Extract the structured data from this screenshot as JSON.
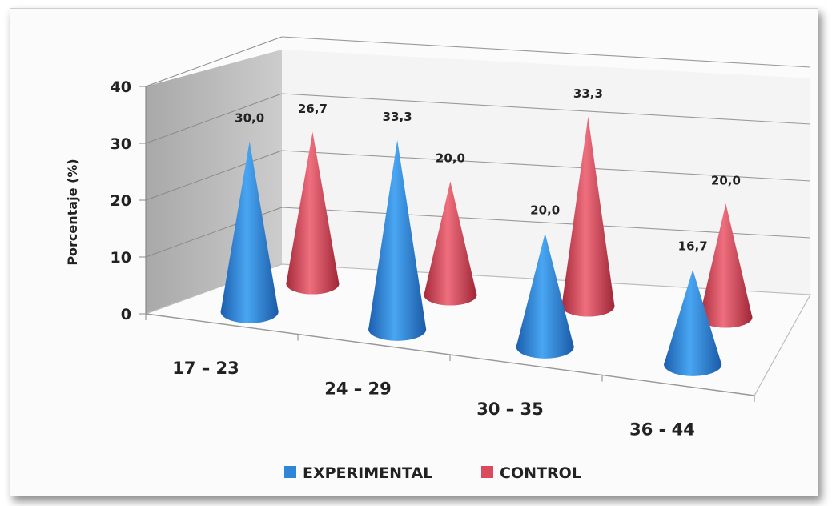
{
  "chart_data": {
    "type": "bar",
    "subtype": "3d-cone",
    "categories": [
      "17 – 23",
      "24 – 29",
      "30 – 35",
      "36 -  44"
    ],
    "series": [
      {
        "name": "EXPERIMENTAL",
        "values": [
          30.0,
          33.3,
          20.0,
          16.7
        ],
        "labels": [
          "30,0",
          "33,3",
          "20,0",
          "16,7"
        ],
        "color": "#2f86d6"
      },
      {
        "name": "CONTROL",
        "values": [
          26.7,
          20.0,
          33.3,
          20.0
        ],
        "labels": [
          "26,7",
          "20,0",
          "33,3",
          "20,0"
        ],
        "color": "#d94a5c"
      }
    ],
    "ylabel": "Porcentaje (%)",
    "ylim": [
      0,
      40
    ],
    "yticks": [
      "0",
      "10",
      "20",
      "30",
      "40"
    ],
    "grid": true,
    "legend_position": "bottom"
  }
}
